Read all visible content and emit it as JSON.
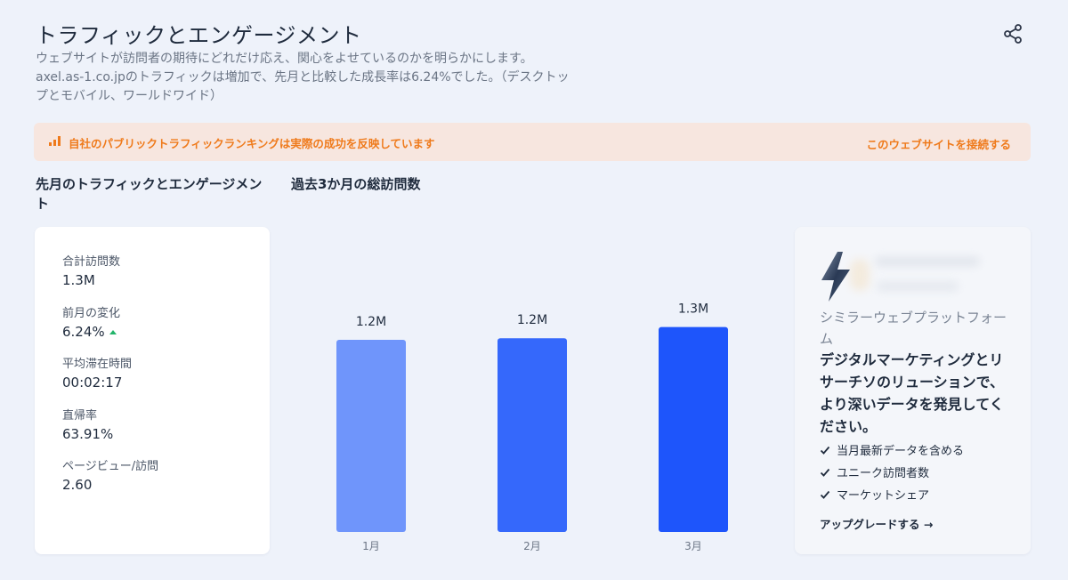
{
  "header": {
    "title": "トラフィックとエンゲージメント",
    "description": "ウェブサイトが訪問者の期待にどれだけ応え、関心をよせているのかを明らかにします。 axel.as-1.co.jpのトラフィックは増加で、先月と比較した成長率は6.24%でした。（デスクトップとモバイル、ワールドワイド）",
    "share_icon": "share-icon"
  },
  "banner": {
    "icon": "bar-chart-icon",
    "text": "自社のパブリックトラフィックランキングは実際の成功を反映しています",
    "link": "このウェブサイトを接続する",
    "color": "#ef7a1b",
    "background": "#f7e6df"
  },
  "sections": {
    "last_month_title": "先月のトラフィックとエンゲージメント",
    "three_month_title": "過去3か月の総訪問数"
  },
  "stats": [
    {
      "label": "合計訪問数",
      "value": "1.3M"
    },
    {
      "label": "前月の変化",
      "value": "6.24%",
      "trend": "up"
    },
    {
      "label": "平均滞在時間",
      "value": "00:02:17"
    },
    {
      "label": "直帰率",
      "value": "63.91%"
    },
    {
      "label": "ページビュー/訪問",
      "value": "2.60"
    }
  ],
  "chart_data": {
    "type": "bar",
    "categories": [
      "1月",
      "2月",
      "3月"
    ],
    "values": [
      1.2,
      1.21,
      1.28
    ],
    "data_labels": [
      "1.2M",
      "1.2M",
      "1.3M"
    ],
    "bar_colors": [
      "#6f95fb",
      "#3568fb",
      "#1e55fb"
    ],
    "ylim": [
      0,
      1.3
    ],
    "title": "",
    "xlabel": "",
    "ylabel": "",
    "grid": false
  },
  "promo": {
    "icon": "lightning-bolt-icon",
    "subtitle": "シミラーウェブプラットフォーム",
    "headline": "デジタルマーケティングとリサーチソのリューションで、より深いデータを発見してください。",
    "features": [
      "当月最新データを含める",
      "ユニーク訪問者数",
      "マーケットシェア"
    ],
    "cta": "アップグレードする →"
  }
}
